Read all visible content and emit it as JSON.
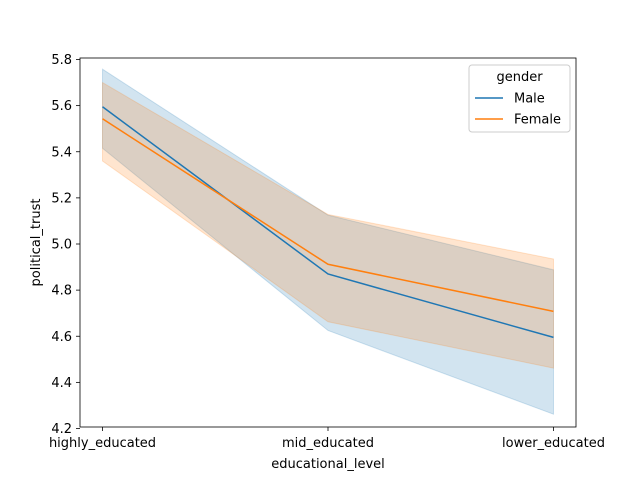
{
  "chart_data": {
    "type": "line",
    "title": "",
    "xlabel": "educational_level",
    "ylabel": "political_trust",
    "categories": [
      "highly_educated",
      "mid_educated",
      "lower_educated"
    ],
    "ylim": [
      4.2,
      5.8
    ],
    "yticks": [
      "4.2",
      "4.4",
      "4.6",
      "4.8",
      "5.0",
      "5.2",
      "5.4",
      "5.6",
      "5.8"
    ],
    "grid": false,
    "legend": {
      "title": "gender",
      "placement": "top-right"
    },
    "series": [
      {
        "name": "Male",
        "color": "#1f77b4",
        "values": [
          5.595,
          4.87,
          4.595
        ],
        "ci_low": [
          5.415,
          4.625,
          4.262
        ],
        "ci_high": [
          5.758,
          5.125,
          4.888
        ]
      },
      {
        "name": "Female",
        "color": "#ff7f0e",
        "values": [
          5.543,
          4.912,
          4.708
        ],
        "ci_low": [
          5.36,
          4.663,
          4.462
        ],
        "ci_high": [
          5.7,
          5.128,
          4.935
        ]
      }
    ]
  }
}
